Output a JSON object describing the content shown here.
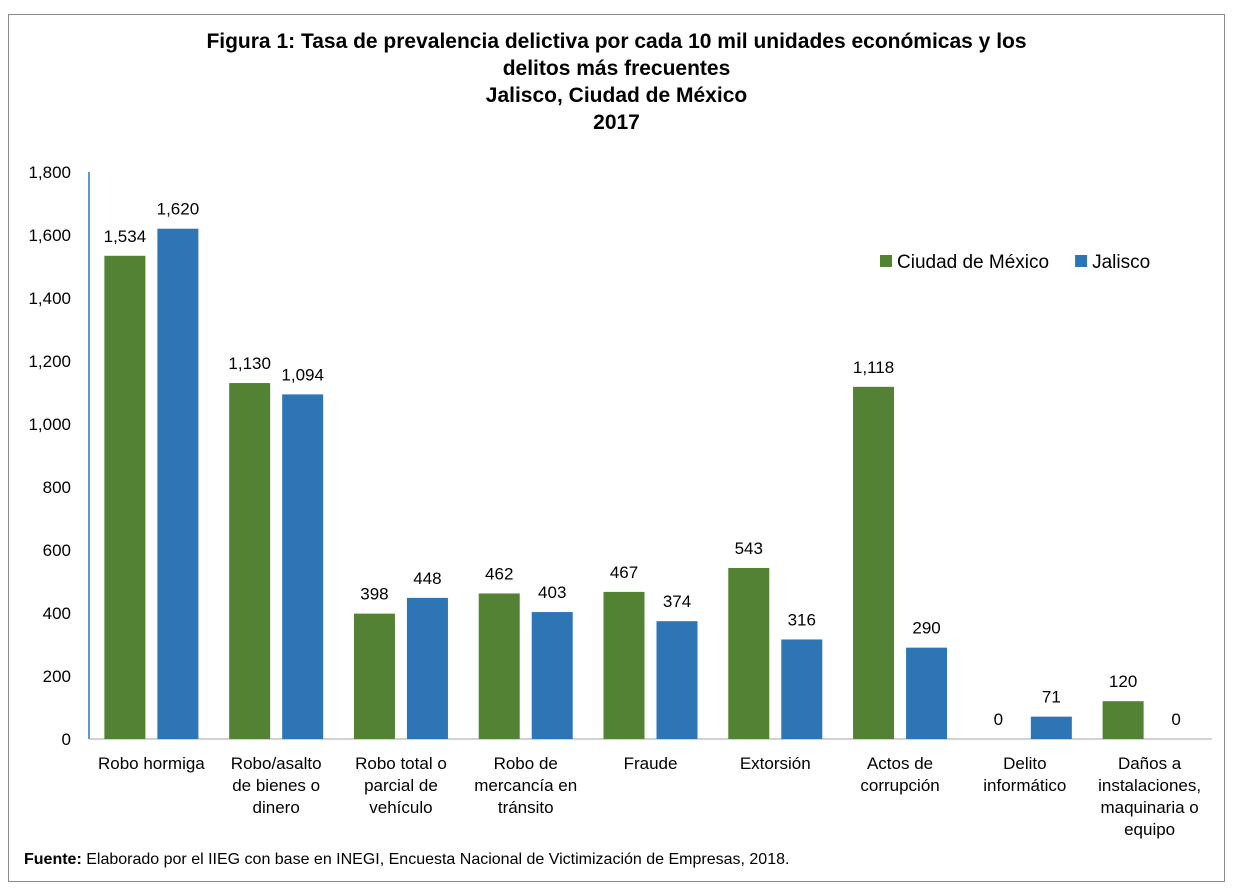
{
  "chart_data": {
    "type": "bar",
    "title_lines": [
      "Figura 1: Tasa de prevalencia delictiva por cada 10 mil unidades económicas y los",
      "delitos más frecuentes",
      "Jalisco, Ciudad de México",
      "2017"
    ],
    "categories": [
      [
        "Robo hormiga"
      ],
      [
        "Robo/asalto",
        "de bienes o",
        "dinero"
      ],
      [
        "Robo total o",
        "parcial de",
        "vehículo"
      ],
      [
        "Robo de",
        "mercancía en",
        "tránsito"
      ],
      [
        "Fraude"
      ],
      [
        "Extorsión"
      ],
      [
        "Actos de",
        "corrupción"
      ],
      [
        "Delito",
        "informático"
      ],
      [
        "Daños a",
        "instalaciones,",
        "maquinaria o",
        "equipo"
      ]
    ],
    "series": [
      {
        "name": "Ciudad de México",
        "color": "#548235",
        "values": [
          1534,
          1130,
          398,
          462,
          467,
          543,
          1118,
          0,
          120
        ],
        "labels": [
          "1,534",
          "1,130",
          "398",
          "462",
          "467",
          "543",
          "1,118",
          "0",
          "120"
        ]
      },
      {
        "name": "Jalisco",
        "color": "#2e75b6",
        "values": [
          1620,
          1094,
          448,
          403,
          374,
          316,
          290,
          71,
          0
        ],
        "labels": [
          "1,620",
          "1,094",
          "448",
          "403",
          "374",
          "316",
          "290",
          "71",
          "0"
        ]
      }
    ],
    "ylim": [
      0,
      1800
    ],
    "yticks": [
      0,
      200,
      400,
      600,
      800,
      1000,
      1200,
      1400,
      1600,
      1800
    ],
    "ytick_labels": [
      "0",
      "200",
      "400",
      "600",
      "800",
      "1,000",
      "1,200",
      "1,400",
      "1,600",
      "1,800"
    ],
    "grid": false,
    "legend_position": "top-right"
  },
  "source": {
    "label": "Fuente:",
    "text": " Elaborado por el IIEG con base en INEGI, Encuesta Nacional de Victimización de Empresas, 2018."
  }
}
